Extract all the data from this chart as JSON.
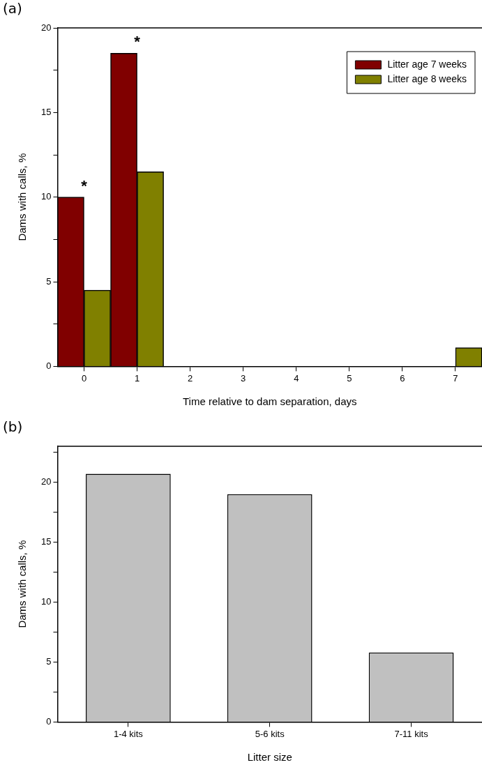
{
  "chart_data": [
    {
      "type": "bar",
      "title": "(a)",
      "xlabel": "Time relative to dam separation, days",
      "ylabel": "Dams with calls, %",
      "categories": [
        "0",
        "1",
        "2",
        "3",
        "4",
        "5",
        "6",
        "7"
      ],
      "series": [
        {
          "name": "Litter age 7 weeks",
          "color": "#800000",
          "values": [
            10,
            18.5,
            0,
            0,
            0,
            0,
            0,
            0
          ]
        },
        {
          "name": "Litter age 8 weeks",
          "color": "#808000",
          "values": [
            4.5,
            11.5,
            0,
            0,
            0,
            0,
            0,
            1.1
          ]
        }
      ],
      "ylim": [
        0,
        20
      ],
      "yticks": [
        0,
        {
          "value": 2.5,
          "label": null
        },
        5,
        {
          "value": 7.5,
          "label": null
        },
        10,
        {
          "value": 12.5,
          "label": null
        },
        15,
        {
          "value": 17.5,
          "label": null
        },
        20
      ],
      "legend": "top right",
      "grid": false,
      "annotations": [
        "*",
        "*"
      ]
    },
    {
      "type": "bar",
      "title": "(b)",
      "xlabel": "Litter size",
      "ylabel": "Dams with calls, %",
      "categories": [
        "1-4 kits",
        "5-6 kits",
        "7-11 kits"
      ],
      "values": [
        20.7,
        19,
        5.8
      ],
      "color": "#c0c0c0",
      "ylim": [
        0,
        23
      ],
      "yticks": [
        0,
        {
          "value": 2.5,
          "label": null
        },
        5,
        {
          "value": 7.5,
          "label": null
        },
        10,
        {
          "value": 12.5,
          "label": null
        },
        15,
        {
          "value": 17.5,
          "label": null
        },
        20,
        {
          "value": 22.5,
          "label": null
        }
      ],
      "grid": false
    }
  ]
}
